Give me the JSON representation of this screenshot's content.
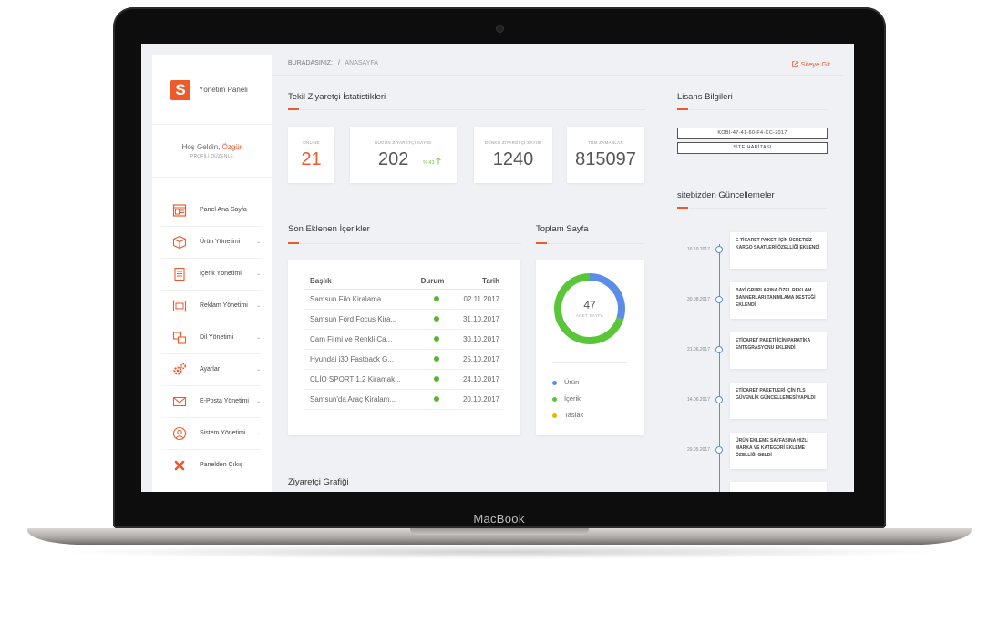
{
  "device": {
    "brand": "MacBook"
  },
  "sidebar": {
    "logo_letter": "S",
    "app_name": "Yönetim Paneli",
    "welcome_prefix": "Hoş Geldin,",
    "user_name": "Özgür",
    "profile_edit": "PROFİLİ DÜZENLE",
    "items": [
      {
        "label": "Panel Ana Sayfa",
        "icon": "dashboard-icon",
        "chevron": ""
      },
      {
        "label": "Ürün Yönetimi",
        "icon": "box-icon",
        "chevron": "⌄"
      },
      {
        "label": "İçerik Yönetimi",
        "icon": "document-icon",
        "chevron": "⌄"
      },
      {
        "label": "Reklam Yönetimi",
        "icon": "image-icon",
        "chevron": "⌄"
      },
      {
        "label": "Dil Yönetimi",
        "icon": "language-icon",
        "chevron": "⌄"
      },
      {
        "label": "Ayarlar",
        "icon": "gear-icon",
        "chevron": "⌄"
      },
      {
        "label": "E-Posta Yönetimi",
        "icon": "mail-icon",
        "chevron": "⌄"
      },
      {
        "label": "Sistem Yönetimi",
        "icon": "user-icon",
        "chevron": "⌄"
      },
      {
        "label": "Panelden Çıkış",
        "icon": "close-icon",
        "chevron": ""
      }
    ]
  },
  "topbar": {
    "breadcrumb_label": "BURADASINIZ:",
    "breadcrumb_sep": "/",
    "breadcrumb_current": "ANASAYFA",
    "site_link": "Siteye Git",
    "site_link_icon": "external-link-icon"
  },
  "stats": {
    "title": "Tekil Ziyaretçi İstatistikleri",
    "cards": [
      {
        "label": "ONLINE",
        "value": "21"
      },
      {
        "label": "BUGÜN ZİYARETÇİ SAYISI",
        "value": "202",
        "trend": "% 43"
      },
      {
        "label": "DÜNKÜ ZİYARETÇİ SAYISI",
        "value": "1240"
      },
      {
        "label": "TÜM ZAMANLAR",
        "value": "815097"
      }
    ]
  },
  "recent": {
    "title": "Son Eklenen İçerikler",
    "columns": [
      "Başlık",
      "Durum",
      "Tarih"
    ],
    "rows": [
      {
        "title": "Samsun Filo Kiralama",
        "date": "02.11.2017"
      },
      {
        "title": "Samsun Ford Focus Kira...",
        "date": "31.10.2017"
      },
      {
        "title": "Cam Filmi ve Renkli Ca...",
        "date": "30.10.2017"
      },
      {
        "title": "Hyundai i30 Fastback G...",
        "date": "25.10.2017"
      },
      {
        "title": "CLİO SPORT 1.2 Kiramak...",
        "date": "24.10.2017"
      },
      {
        "title": "Samsun'da Araç Kiralam...",
        "date": "20.10.2017"
      }
    ]
  },
  "pages": {
    "title": "Toplam Sayfa",
    "total": "47",
    "total_label": "ADET SAYFA",
    "donut": {
      "blue_fraction": 0.3,
      "green_fraction": 0.7
    },
    "legend": [
      {
        "label": "Ürün",
        "color": "#5b8de8"
      },
      {
        "label": "İçerik",
        "color": "#59c63a"
      },
      {
        "label": "Taslak",
        "color": "#f0b400"
      }
    ]
  },
  "visitor_chart": {
    "title": "Ziyaretçi Grafiği"
  },
  "license": {
    "title": "Lisans Bilgileri",
    "key": "KOBI-47-41-60-F4-CC-2017",
    "sitemap": "SİTE HARİTASI"
  },
  "updates": {
    "title": "sitebizden Güncellemeler",
    "items": [
      {
        "date": "16.10.2017",
        "text": "E-TİCARET PAKETİ İÇİN ÜCRETSİZ KARGO SAATLERİ ÖZELLİĞİ EKLENDİ"
      },
      {
        "date": "30.08.2017",
        "text": "BAYİ GRUPLARINA ÖZEL REKLAM BANNERLARI TANIMLAMA DESTEĞİ EKLENDİ."
      },
      {
        "date": "21.06.2017",
        "text": "ETİCARET PAKETİ İÇİN PARATİKA ENTEGRASYONU EKLENDİ"
      },
      {
        "date": "14.06.2017",
        "text": "ETİCARET PAKETLERİ İÇİN TLS GÜVENLİK GÜNCELLEMESİ YAPILDI"
      },
      {
        "date": "29.05.2017",
        "text": "ÜRÜN EKLEME SAYFASINA HIZLI MARKA VE KATEGORİ EKLEME ÖZELLİĞİ GELDİ"
      }
    ]
  },
  "colors": {
    "accent": "#ee5a2a",
    "success": "#59b530",
    "timeline": "#5a8fd8"
  }
}
